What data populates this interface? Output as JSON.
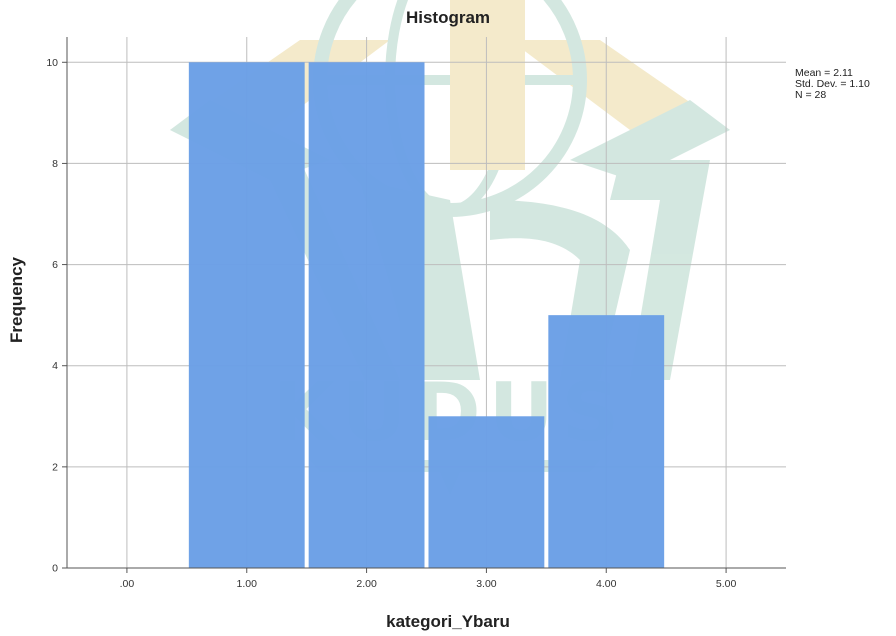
{
  "chart_data": {
    "type": "bar",
    "title": "Histogram",
    "xlabel": "kategori_Ybaru",
    "ylabel": "Frequency",
    "x_ticks": [
      ".00",
      "1.00",
      "2.00",
      "3.00",
      "4.00",
      "5.00"
    ],
    "y_ticks": [
      "0",
      "2",
      "4",
      "6",
      "8",
      "10"
    ],
    "xlim": [
      -0.5,
      5.5
    ],
    "ylim": [
      0,
      10.5
    ],
    "bins": [
      {
        "center": 1,
        "width": 1,
        "count": 10
      },
      {
        "center": 2,
        "width": 1,
        "count": 10
      },
      {
        "center": 3,
        "width": 1,
        "count": 3
      },
      {
        "center": 4,
        "width": 1,
        "count": 5
      }
    ],
    "grid": true,
    "bar_color": "#6a9fe6",
    "stats": {
      "mean": "Mean = 2.11",
      "std_dev": "Std. Dev. = 1.10",
      "n": "N = 28"
    }
  },
  "watermark": {
    "text": "KUDUS",
    "color_teal": "#cfe5dd",
    "color_gold": "#f3e8c6"
  }
}
